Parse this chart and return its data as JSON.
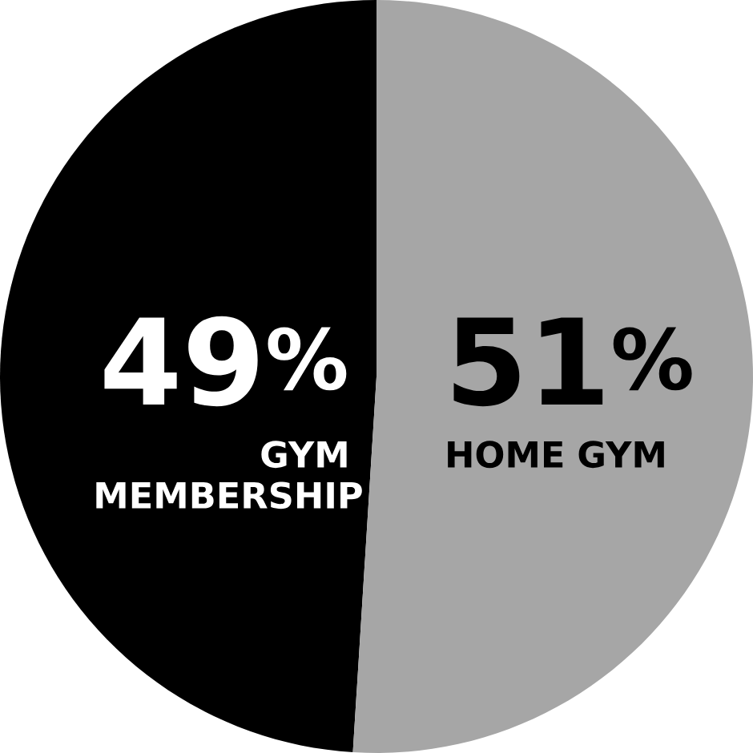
{
  "chart_data": {
    "type": "pie",
    "categories": [
      "GYM MEMBERSHIP",
      "HOME GYM"
    ],
    "values": [
      49,
      51
    ],
    "colors": [
      "#000000",
      "#a6a6a6"
    ],
    "value_labels": [
      "49$^{%}$",
      "51$^{%}$"
    ]
  }
}
